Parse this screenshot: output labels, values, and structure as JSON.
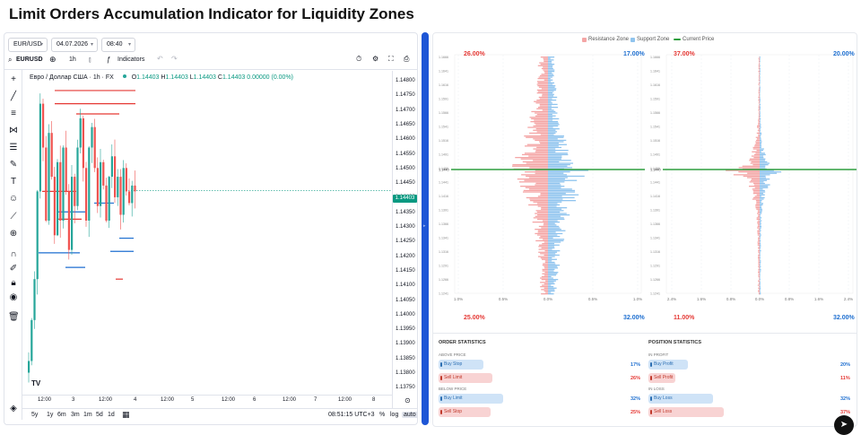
{
  "page": {
    "title": "Limit Orders Accumulation Indicator for Liquidity Zones"
  },
  "chart_panel": {
    "symbol_select": "EUR/USD",
    "date_input": "04.07.2026",
    "time_input": "08:40",
    "toolbar": {
      "symbol": "EURUSD",
      "interval": "1h",
      "indicators_label": "Indicators"
    },
    "legend": {
      "title": "Евро / Доллар США · 1h · FX",
      "open_label": "O",
      "open": "1.14403",
      "high_label": "H",
      "high": "1.14403",
      "low_label": "L",
      "low": "1.14403",
      "close_label": "C",
      "close": "1.14403",
      "change": "0.00000 (0.00%)"
    },
    "price_ticks": [
      "1.14800",
      "1.14750",
      "1.14700",
      "1.14650",
      "1.14600",
      "1.14550",
      "1.14500",
      "1.14450",
      "1.14400",
      "1.14350",
      "1.14300",
      "1.14250",
      "1.14200",
      "1.14150",
      "1.14100",
      "1.14050",
      "1.14000",
      "1.13950",
      "1.13900",
      "1.13850",
      "1.13800",
      "1.13750"
    ],
    "current_price": "1.14403",
    "time_ticks": [
      "12:00",
      "3",
      "12:00",
      "4",
      "12:00",
      "5",
      "12:00",
      "6",
      "12:00",
      "7",
      "12:00",
      "8"
    ],
    "bottom": {
      "ranges": [
        "5y",
        "1y",
        "6m",
        "3m",
        "1m",
        "5d",
        "1d"
      ],
      "clock": "08:51:15 UTC+3",
      "pct": "%",
      "log": "log",
      "auto": "auto"
    },
    "logo_text": "TV",
    "colors": {
      "up": "#26a69a",
      "down": "#ef5350",
      "resistance": "#e53935",
      "support": "#1e6fd0",
      "price_line": "#089981"
    }
  },
  "profile_panel": {
    "legend": {
      "resistance": "Resistance Zone",
      "support": "Support Zone",
      "current": "Current Price"
    },
    "colors": {
      "resistance": "#f4a6a6",
      "support": "#90c4ee",
      "current": "#2e9e3e"
    },
    "orders_chart": {
      "top_left_pct": "26.00%",
      "top_right_pct": "17.00%",
      "bottom_left_pct": "25.00%",
      "bottom_right_pct": "32.00%",
      "x_ticks": [
        "1.0%",
        "0.5%",
        "0.0%",
        "0.5%",
        "1.0%"
      ],
      "price_labels": [
        "1.1666",
        "1.1641",
        "1.1616",
        "1.1591",
        "1.1566",
        "1.1541",
        "1.1516",
        "1.1491",
        "1.1466",
        "1.1441",
        "1.1416",
        "1.1391",
        "1.1366",
        "1.1341",
        "1.1316",
        "1.1291",
        "1.1266",
        "1.1241"
      ],
      "current_label": "1.1440"
    },
    "positions_chart": {
      "top_left_pct": "37.00%",
      "top_right_pct": "20.00%",
      "bottom_left_pct": "11.00%",
      "bottom_right_pct": "32.00%",
      "x_ticks": [
        "2.4%",
        "1.6%",
        "0.8%",
        "0.0%",
        "0.8%",
        "1.6%",
        "2.4%"
      ],
      "current_label": "1.1440"
    },
    "order_statistics": {
      "title": "ORDER STATISTICS",
      "above_label": "ABOVE PRICE",
      "below_label": "BELOW PRICE",
      "items": [
        {
          "label": "Buy Stop",
          "value": "17%",
          "kind": "buy"
        },
        {
          "label": "Sell Limit",
          "value": "26%",
          "kind": "sell"
        },
        {
          "label": "Buy Limit",
          "value": "32%",
          "kind": "buy"
        },
        {
          "label": "Sell Stop",
          "value": "25%",
          "kind": "sell"
        }
      ]
    },
    "position_statistics": {
      "title": "POSITION STATISTICS",
      "profit_label": "IN PROFIT",
      "loss_label": "IN LOSS",
      "items": [
        {
          "label": "Buy Profit",
          "value": "20%",
          "kind": "buy"
        },
        {
          "label": "Sell Profit",
          "value": "11%",
          "kind": "sell"
        },
        {
          "label": "Buy Loss",
          "value": "32%",
          "kind": "buy"
        },
        {
          "label": "Sell Loss",
          "value": "37%",
          "kind": "sell"
        }
      ]
    }
  }
}
